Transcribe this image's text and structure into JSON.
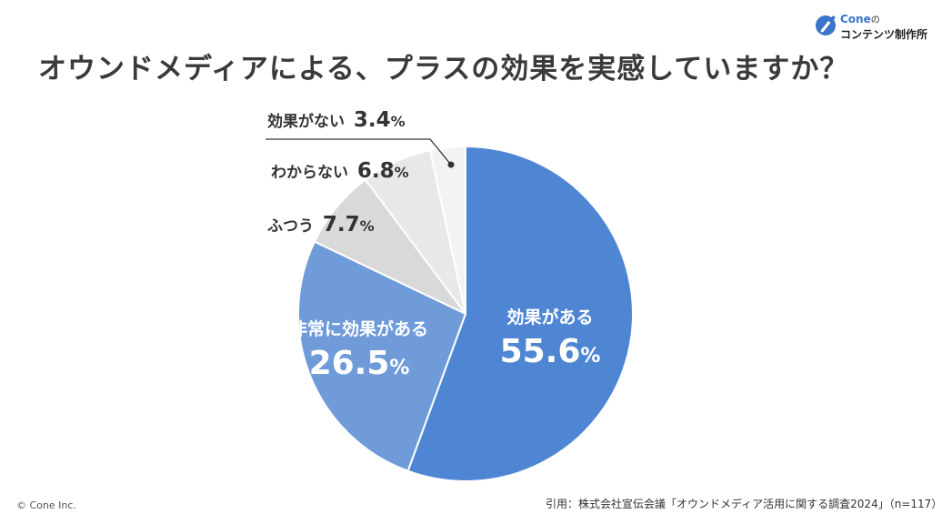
{
  "brand": {
    "name_en": "Cone",
    "name_particle": "の",
    "name_jp": "コンテンツ制作所",
    "logo_icon": "cone-pencil-icon",
    "accent": "#3b74c9"
  },
  "title": "オウンドメディアによる、プラスの効果を実感していますか？",
  "chart_data": {
    "type": "pie",
    "start": "12 o'clock",
    "direction": "clockwise",
    "unit": "%",
    "slices": [
      {
        "label": "効果がある",
        "value": 55.6,
        "value_text": "55.6",
        "color": "#4f86d3",
        "label_color": "#ffffff"
      },
      {
        "label": "非常に効果がある",
        "value": 26.5,
        "value_text": "26.5",
        "color": "#6f9bd9",
        "label_color": "#ffffff"
      },
      {
        "label": "ふつう",
        "value": 7.7,
        "value_text": "7.7",
        "color": "#d9d9d9",
        "label_color": "#333333"
      },
      {
        "label": "わからない",
        "value": 6.8,
        "value_text": "6.8",
        "color": "#e8e8e8",
        "label_color": "#333333"
      },
      {
        "label": "効果がない",
        "value": 3.4,
        "value_text": "3.4",
        "color": "#f3f3f3",
        "label_color": "#333333"
      }
    ]
  },
  "footer": {
    "copyright": "© Cone Inc.",
    "source": "引用：株式会社宣伝会議「オウンドメディア活用に関する調査2024」（n=117）"
  }
}
